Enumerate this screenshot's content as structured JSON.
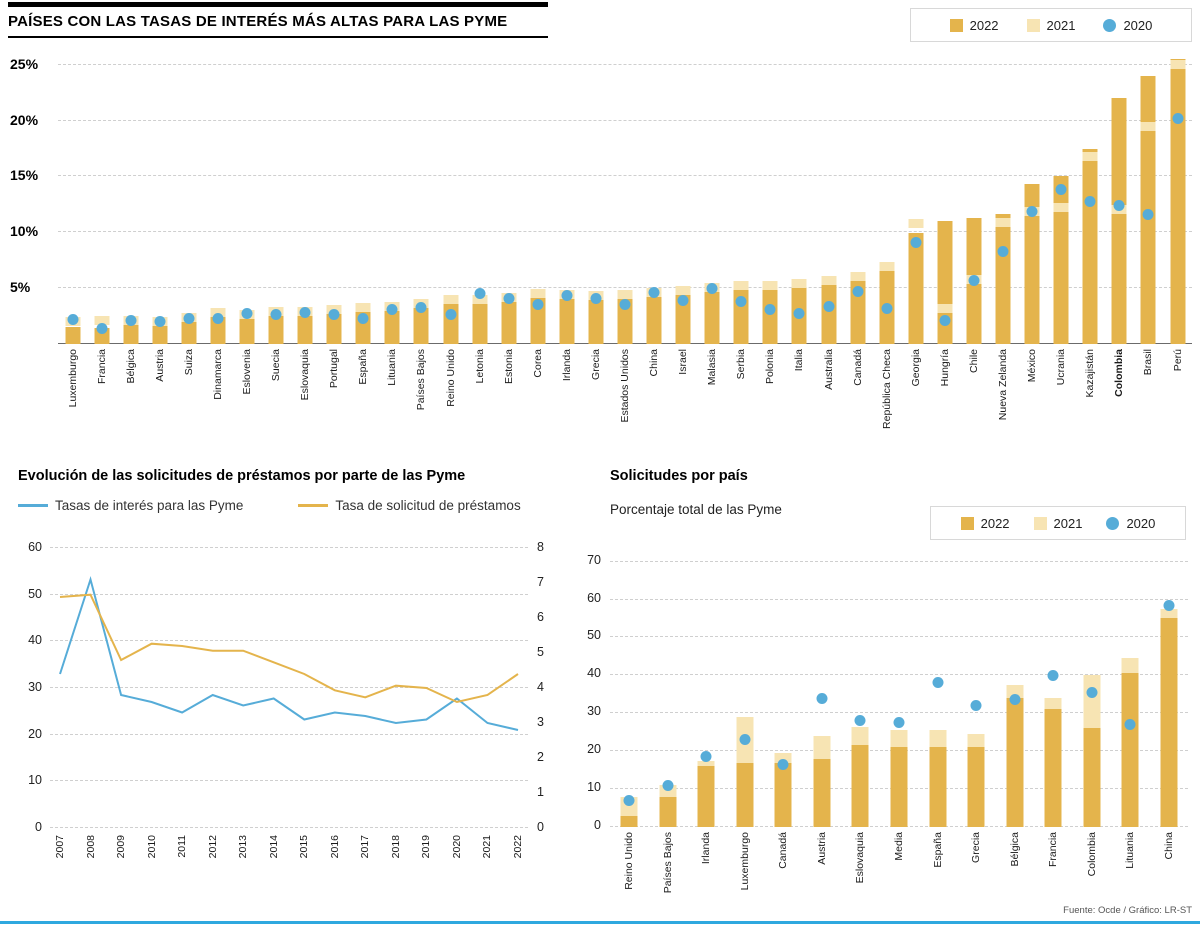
{
  "colors": {
    "gold": "#E4B44C",
    "beige": "#F7E4B3",
    "blue": "#56ACD8",
    "grid": "#CFCFCF",
    "rule": "#000000",
    "footer_line": "#2FA8DF"
  },
  "legend": {
    "y2022": "2022",
    "y2021": "2021",
    "y2020": "2020"
  },
  "footer": {
    "source": "Fuente: Ocde / Gráfico: LR-ST"
  },
  "chart_data": [
    {
      "id": "tasas-interes-pyme",
      "type": "bar",
      "title": "PAÍSES CON LAS TASAS DE INTERÉS MÁS ALTAS PARA LAS PYME",
      "legend": [
        "2022",
        "2021",
        "2020"
      ],
      "y_ticks": [
        5,
        10,
        15,
        20,
        25
      ],
      "y_tick_suffix": "%",
      "ylim": [
        0,
        26.5
      ],
      "bold_category": "Colombia",
      "categories": [
        "Luxemburgo",
        "Francia",
        "Bélgica",
        "Austria",
        "Suiza",
        "Dinamarca",
        "Eslovenia",
        "Suecia",
        "Eslovaquia",
        "Portugal",
        "España",
        "Lituania",
        "Países Bajos",
        "Reino Unido",
        "Letonia",
        "Estonia",
        "Corea",
        "Irlanda",
        "Grecia",
        "Estados Unidos",
        "China",
        "Israel",
        "Malasia",
        "Serbia",
        "Polonia",
        "Italia",
        "Australia",
        "Canadá",
        "República Checa",
        "Georgia",
        "Hungría",
        "Chile",
        "Nueva Zelanda",
        "México",
        "Ucrania",
        "Kazajistán",
        "Colombia",
        "Brasil",
        "Perú"
      ],
      "series": [
        {
          "name": "2022",
          "style": "bar",
          "values": [
            1.5,
            1.4,
            1.8,
            1.8,
            2.0,
            2.4,
            2.3,
            2.5,
            2.7,
            2.8,
            2.9,
            3.1,
            3.3,
            3.8,
            3.8,
            4.0,
            4.3,
            4.2,
            4.1,
            4.2,
            4.4,
            4.6,
            4.9,
            5.0,
            5.0,
            5.2,
            5.5,
            6.3,
            7.2,
            9.9,
            11.0,
            11.3,
            11.6,
            14.3,
            15.0,
            17.5,
            22.0,
            24.0,
            25.5
          ]
        },
        {
          "name": "2021",
          "style": "tick",
          "values": [
            2.0,
            2.1,
            2.1,
            2.0,
            2.4,
            2.8,
            2.6,
            2.9,
            2.9,
            3.1,
            3.3,
            3.4,
            3.6,
            4.0,
            4.0,
            4.2,
            4.5,
            4.4,
            4.3,
            4.4,
            4.6,
            4.8,
            5.1,
            5.2,
            5.2,
            5.4,
            5.7,
            6.0,
            6.9,
            10.8,
            3.2,
            5.8,
            10.9,
            11.9,
            12.2,
            16.8,
            12.0,
            19.5,
            25.0
          ]
        },
        {
          "name": "2020",
          "style": "dot",
          "values": [
            2.2,
            1.4,
            2.1,
            2.0,
            2.3,
            2.3,
            2.7,
            2.6,
            2.8,
            2.6,
            2.3,
            3.1,
            3.3,
            2.6,
            4.5,
            4.1,
            3.5,
            4.3,
            4.1,
            3.5,
            4.6,
            3.9,
            5.0,
            3.8,
            3.1,
            2.7,
            3.4,
            4.7,
            3.2,
            9.1,
            2.1,
            5.7,
            8.3,
            11.9,
            13.8,
            12.8,
            12.4,
            11.6,
            20.2
          ]
        }
      ]
    },
    {
      "id": "evolucion-solicitudes",
      "type": "line",
      "title": "Evolución de las solicitudes de préstamos por parte de las Pyme",
      "x": [
        "2007",
        "2008",
        "2009",
        "2010",
        "2011",
        "2012",
        "2013",
        "2014",
        "2015",
        "2016",
        "2017",
        "2018",
        "2019",
        "2020",
        "2021",
        "2022"
      ],
      "left_axis": {
        "ticks": [
          0,
          10,
          20,
          30,
          40,
          50,
          60
        ],
        "max": 60
      },
      "right_axis": {
        "ticks": [
          0,
          1,
          2,
          3,
          4,
          5,
          6,
          7,
          8
        ],
        "max": 8
      },
      "series": [
        {
          "name": "Tasas de interés para las Pyme",
          "axis": "right",
          "color": "blue",
          "values": [
            4.4,
            7.1,
            3.8,
            3.6,
            3.3,
            3.8,
            3.5,
            3.7,
            3.1,
            3.3,
            3.2,
            3.0,
            3.1,
            3.7,
            3.0,
            2.8
          ]
        },
        {
          "name": "Tasa de solicitud de préstamos",
          "axis": "left",
          "color": "gold",
          "values": [
            49.5,
            50.0,
            36.0,
            39.5,
            39.0,
            38.0,
            38.0,
            35.5,
            33.0,
            29.5,
            28.0,
            30.5,
            30.0,
            27.0,
            28.5,
            33.0
          ]
        }
      ]
    },
    {
      "id": "solicitudes-por-pais",
      "type": "bar",
      "title": "Solicitudes por país",
      "subtitle": "Porcentaje total de las Pyme",
      "legend": [
        "2022",
        "2021",
        "2020"
      ],
      "y_ticks": [
        0,
        10,
        20,
        30,
        40,
        50,
        60,
        70
      ],
      "y_tick_suffix": "",
      "ylim": [
        0,
        72
      ],
      "categories": [
        "Reino Unido",
        "Países Bajos",
        "Irlanda",
        "Luxemburgo",
        "Canadá",
        "Austria",
        "Eslovaquia",
        "Media",
        "España",
        "Grecia",
        "Bélgica",
        "Francia",
        "Colombia",
        "Lituania",
        "China"
      ],
      "series": [
        {
          "name": "2022",
          "style": "bar",
          "values": [
            3,
            8,
            16,
            17,
            17,
            18,
            21.5,
            21,
            21,
            21,
            34,
            31,
            26,
            40.5,
            55
          ]
        },
        {
          "name": "2021",
          "style": "bar-behind",
          "values": [
            8,
            11,
            17.5,
            29,
            19.5,
            24,
            26.5,
            25.5,
            25.5,
            24.5,
            37.5,
            34,
            40,
            44.5,
            57.5
          ]
        },
        {
          "name": "2020",
          "style": "dot",
          "values": [
            7,
            11,
            18.5,
            23,
            16.5,
            34,
            28,
            27.5,
            38,
            32,
            33.5,
            40,
            35.5,
            27,
            58.5
          ]
        }
      ]
    }
  ]
}
